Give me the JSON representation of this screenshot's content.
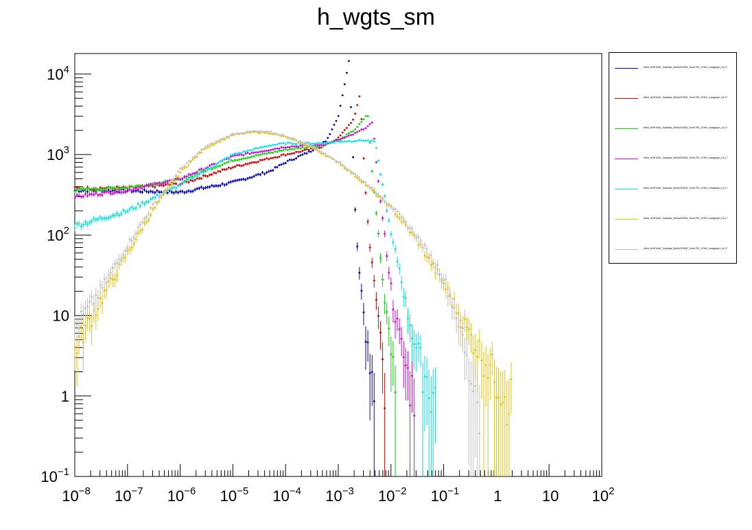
{
  "title": "h_wgts_sm",
  "legend": {
    "entries": [
      {
        "label": "tthhh_ttHHTo4b_TopMass_MiniAODSIM_TuneCP5_13TeV_madgraph_UL17",
        "color": "#0000cc"
      },
      {
        "label": "tthhh_ttHHTo4b_TopMass_MiniAODSIM_TuneCP5_13TeV_madgraph_UL17",
        "color": "#dd0000"
      },
      {
        "label": "tthhh_ttHHTo4b_TopMass_MiniAODSIM_TuneCP5_13TeV_madgraph_UL17",
        "color": "#00dd00"
      },
      {
        "label": "tthhh_ttHHTo4b_TopMass_MiniAODSIM_TuneCP5_13TeV_madgraph_UL17",
        "color": "#dd00dd"
      },
      {
        "label": "tthhh_ttHHTo4b_TopMass_MiniAODSIM_TuneCP5_13TeV_madgraph_UL17",
        "color": "#00e5e5"
      },
      {
        "label": "tthhh_ttHHTo4b_TopMass_MiniAODSIM_TuneCP5_13TeV_madgraph_UL17",
        "color": "#f0c000"
      },
      {
        "label": "tthhh_ttHHTo4b_TopMass_MiniAODSIM_TuneCP5_13TeV_madgraph_UL17",
        "color": "#c0c0c0"
      }
    ]
  },
  "chart_data": {
    "type": "scatter",
    "title": "h_wgts_sm",
    "xscale": "log",
    "yscale": "log",
    "xlim": [
      1e-08,
      100
    ],
    "ylim": [
      0.1,
      18000
    ],
    "xticks": [
      {
        "v": 1e-08,
        "base": "10",
        "exp": "−8"
      },
      {
        "v": 1e-07,
        "base": "10",
        "exp": "−7"
      },
      {
        "v": 1e-06,
        "base": "10",
        "exp": "−6"
      },
      {
        "v": 1e-05,
        "base": "10",
        "exp": "−5"
      },
      {
        "v": 0.0001,
        "base": "10",
        "exp": "−4"
      },
      {
        "v": 0.001,
        "base": "10",
        "exp": "−3"
      },
      {
        "v": 0.01,
        "base": "10",
        "exp": "−2"
      },
      {
        "v": 0.1,
        "base": "10",
        "exp": "−1"
      },
      {
        "v": 1,
        "base": "1",
        "exp": ""
      },
      {
        "v": 10,
        "base": "10",
        "exp": ""
      },
      {
        "v": 100,
        "base": "10",
        "exp": "2"
      }
    ],
    "yticks": [
      {
        "v": 0.1,
        "base": "10",
        "exp": "−1"
      },
      {
        "v": 1,
        "base": "1",
        "exp": ""
      },
      {
        "v": 10,
        "base": "10",
        "exp": ""
      },
      {
        "v": 100,
        "base": "10",
        "exp": "2"
      },
      {
        "v": 1000,
        "base": "10",
        "exp": "3"
      },
      {
        "v": 10000,
        "base": "10",
        "exp": "4"
      }
    ],
    "grid": false,
    "legend_position": "right",
    "series": [
      {
        "color": "#0000cc",
        "points": [
          [
            1e-08,
            360
          ],
          [
            1e-07,
            355
          ],
          [
            1e-06,
            340
          ],
          [
            1e-05,
            450
          ],
          [
            5e-05,
            620
          ],
          [
            0.0001,
            800
          ],
          [
            0.0003,
            1100
          ],
          [
            0.0006,
            1500
          ],
          [
            0.001,
            3000
          ],
          [
            0.0013,
            7000
          ],
          [
            0.0016,
            15000
          ],
          [
            0.0019,
            1000
          ],
          [
            0.0022,
            100
          ],
          [
            0.0026,
            30
          ],
          [
            0.003,
            12
          ],
          [
            0.0035,
            5
          ],
          [
            0.004,
            2
          ],
          [
            0.005,
            1
          ]
        ]
      },
      {
        "color": "#dd0000",
        "points": [
          [
            1e-08,
            380
          ],
          [
            1e-07,
            385
          ],
          [
            1e-06,
            430
          ],
          [
            1e-05,
            700
          ],
          [
            5e-05,
            900
          ],
          [
            0.0001,
            1000
          ],
          [
            0.0005,
            1250
          ],
          [
            0.001,
            1600
          ],
          [
            0.002,
            2800
          ],
          [
            0.0026,
            5800
          ],
          [
            0.0032,
            450
          ],
          [
            0.004,
            70
          ],
          [
            0.005,
            20
          ],
          [
            0.006,
            8
          ],
          [
            0.007,
            3
          ],
          [
            0.008,
            1
          ]
        ]
      },
      {
        "color": "#00dd00",
        "points": [
          [
            1e-08,
            360
          ],
          [
            1e-07,
            390
          ],
          [
            1e-06,
            480
          ],
          [
            1e-05,
            850
          ],
          [
            5e-05,
            1050
          ],
          [
            0.0001,
            1150
          ],
          [
            0.0005,
            1300
          ],
          [
            0.001,
            1500
          ],
          [
            0.002,
            2000
          ],
          [
            0.003,
            2700
          ],
          [
            0.0036,
            3300
          ],
          [
            0.0045,
            500
          ],
          [
            0.006,
            80
          ],
          [
            0.007,
            25
          ],
          [
            0.009,
            8
          ],
          [
            0.011,
            3
          ],
          [
            0.013,
            1
          ]
        ]
      },
      {
        "color": "#dd00dd",
        "points": [
          [
            1e-08,
            300
          ],
          [
            1e-07,
            360
          ],
          [
            1e-06,
            500
          ],
          [
            1e-05,
            950
          ],
          [
            5e-05,
            1150
          ],
          [
            0.0001,
            1250
          ],
          [
            0.0005,
            1320
          ],
          [
            0.001,
            1500
          ],
          [
            0.002,
            1800
          ],
          [
            0.0035,
            2200
          ],
          [
            0.0045,
            2500
          ],
          [
            0.0055,
            600
          ],
          [
            0.007,
            150
          ],
          [
            0.009,
            40
          ],
          [
            0.011,
            14
          ],
          [
            0.015,
            5
          ],
          [
            0.02,
            2
          ],
          [
            0.03,
            1
          ]
        ]
      },
      {
        "color": "#00e5e5",
        "points": [
          [
            1e-08,
            130
          ],
          [
            1e-07,
            200
          ],
          [
            1e-06,
            420
          ],
          [
            1e-05,
            1000
          ],
          [
            5e-05,
            1300
          ],
          [
            0.0001,
            1380
          ],
          [
            0.0005,
            1380
          ],
          [
            0.001,
            1450
          ],
          [
            0.003,
            1500
          ],
          [
            0.005,
            1450
          ],
          [
            0.006,
            700
          ],
          [
            0.008,
            250
          ],
          [
            0.01,
            100
          ],
          [
            0.015,
            35
          ],
          [
            0.02,
            12
          ],
          [
            0.03,
            4
          ],
          [
            0.05,
            1.5
          ],
          [
            0.07,
            1
          ]
        ]
      },
      {
        "color": "#f0c000",
        "points": [
          [
            1e-08,
            4
          ],
          [
            3e-08,
            15
          ],
          [
            1e-07,
            60
          ],
          [
            3e-07,
            200
          ],
          [
            1e-06,
            600
          ],
          [
            3e-06,
            1200
          ],
          [
            1e-05,
            1750
          ],
          [
            2.5e-05,
            1900
          ],
          [
            5e-05,
            1850
          ],
          [
            0.0001,
            1650
          ],
          [
            0.0003,
            1250
          ],
          [
            0.001,
            800
          ],
          [
            0.003,
            450
          ],
          [
            0.01,
            220
          ],
          [
            0.03,
            90
          ],
          [
            0.1,
            25
          ],
          [
            0.3,
            6
          ],
          [
            1,
            1.8
          ],
          [
            2,
            1
          ]
        ]
      },
      {
        "color": "#c0c0c0",
        "points": [
          [
            1e-08,
            7
          ],
          [
            3e-08,
            20
          ],
          [
            1e-07,
            75
          ],
          [
            3e-07,
            230
          ],
          [
            1e-06,
            650
          ],
          [
            3e-06,
            1250
          ],
          [
            1e-05,
            1800
          ],
          [
            2.5e-05,
            1950
          ],
          [
            5e-05,
            1900
          ],
          [
            0.0001,
            1700
          ],
          [
            0.0003,
            1300
          ],
          [
            0.001,
            820
          ],
          [
            0.003,
            470
          ],
          [
            0.01,
            230
          ],
          [
            0.03,
            100
          ],
          [
            0.1,
            30
          ],
          [
            0.2,
            8
          ],
          [
            0.3,
            2
          ],
          [
            0.5,
            1
          ]
        ]
      }
    ]
  }
}
